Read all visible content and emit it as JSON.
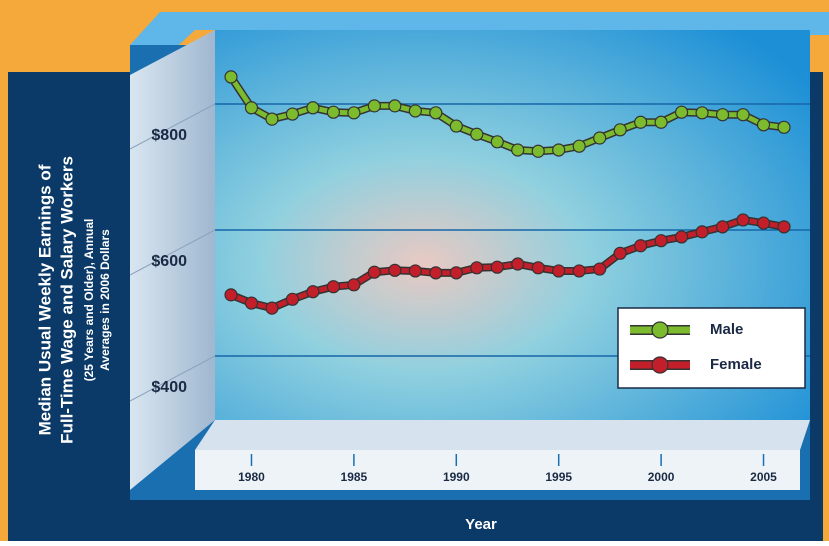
{
  "chart_data": {
    "type": "line",
    "title": [
      "Median Usual Weekly Earnings of",
      "Full-Time Wage and  Salary Workers"
    ],
    "subtitle": [
      "(25 Years and Older), Annual",
      "Averages in 2006 Dollars"
    ],
    "x_label": "Year",
    "x": [
      1979,
      1980,
      1981,
      1982,
      1983,
      1984,
      1985,
      1986,
      1987,
      1988,
      1989,
      1990,
      1991,
      1992,
      1993,
      1994,
      1995,
      1996,
      1997,
      1998,
      1999,
      2000,
      2001,
      2002,
      2003,
      2004,
      2005,
      2006
    ],
    "series": [
      {
        "name": "Male",
        "color": "#7dbb2e",
        "values": [
          843,
          794,
          776,
          784,
          794,
          787,
          786,
          797,
          797,
          789,
          786,
          765,
          752,
          740,
          727,
          725,
          727,
          733,
          746,
          759,
          771,
          771,
          787,
          786,
          783,
          783,
          767,
          763
        ]
      },
      {
        "name": "Female",
        "color": "#c21f2b",
        "values": [
          497,
          484,
          476,
          490,
          502,
          510,
          513,
          533,
          536,
          535,
          532,
          532,
          540,
          541,
          546,
          540,
          535,
          535,
          538,
          563,
          575,
          583,
          589,
          597,
          605,
          616,
          611,
          605
        ]
      }
    ],
    "xlim": [
      1979,
      2006
    ],
    "xticks": [
      1980,
      1985,
      1990,
      1995,
      2000,
      2005
    ],
    "ylim": [
      300,
      900
    ],
    "yticks": [
      {
        "value": 400,
        "label": "$400"
      },
      {
        "value": 600,
        "label": "$600"
      },
      {
        "value": 800,
        "label": "$800"
      }
    ],
    "grid": true,
    "legend": "lower right"
  }
}
